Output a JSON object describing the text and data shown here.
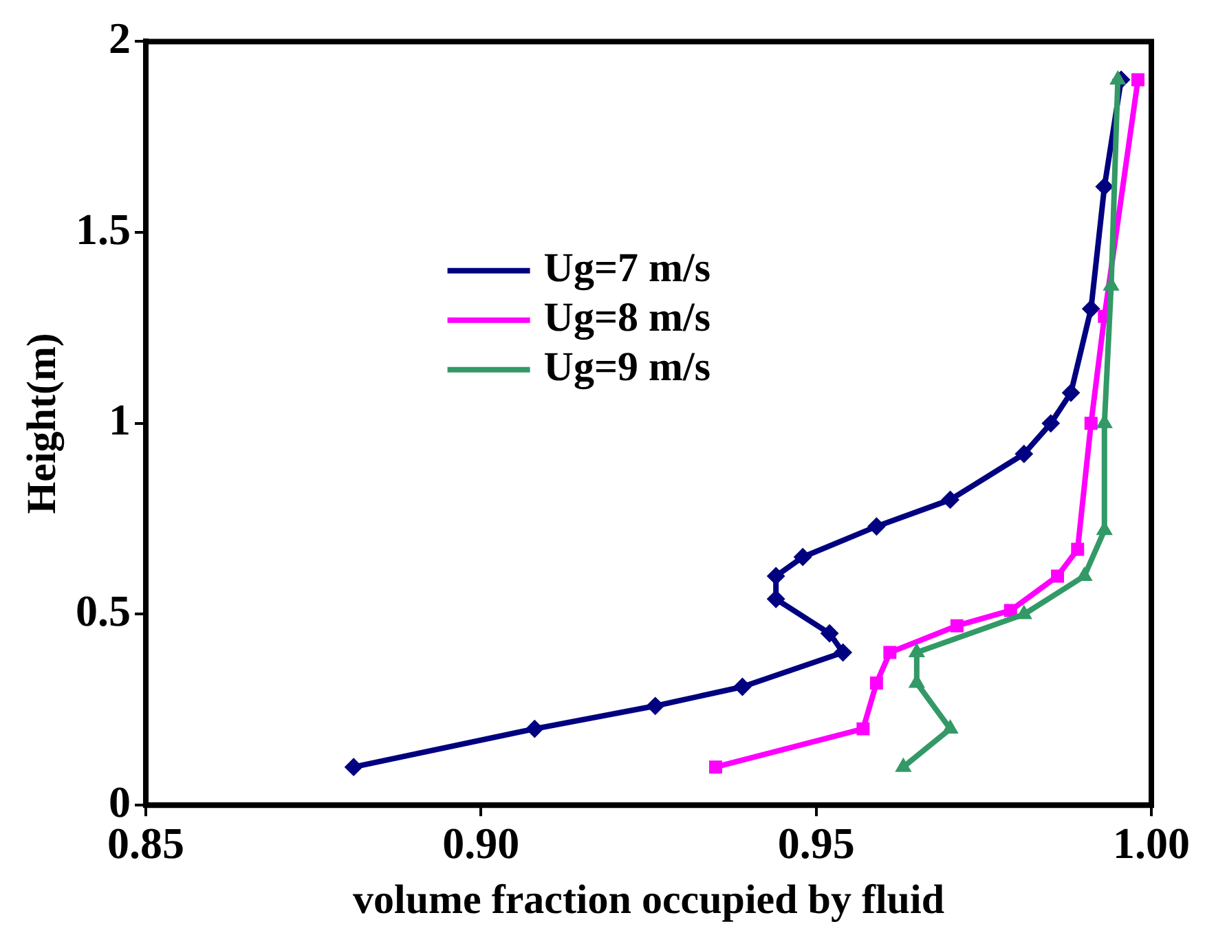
{
  "chart_data": {
    "type": "line",
    "xlabel": "volume fraction occupied by fluid",
    "ylabel": "Height(m)",
    "xlim": [
      0.85,
      1.0
    ],
    "xticks": [
      0.85,
      {
        "value": 0.9,
        "label": "0.90"
      },
      0.95,
      {
        "value": 1.0,
        "label": "1.00"
      }
    ],
    "ylim": [
      0,
      2
    ],
    "yticks": [
      0,
      0.5,
      1,
      1.5,
      2
    ],
    "grid": false,
    "legend": "top",
    "line_style": "solid",
    "series": [
      {
        "name": "Ug=7 m/s",
        "color": "#000080",
        "marker": "diamond",
        "x": [
          0.881,
          0.908,
          0.926,
          0.939,
          0.954,
          0.952,
          0.944,
          0.944,
          0.948,
          0.959,
          0.97,
          0.981,
          0.985,
          0.988,
          0.991,
          0.993,
          0.9955
        ],
        "values": [
          0.1,
          0.2,
          0.26,
          0.31,
          0.4,
          0.45,
          0.54,
          0.6,
          0.65,
          0.73,
          0.8,
          0.92,
          1.0,
          1.08,
          1.3,
          1.62,
          1.9
        ]
      },
      {
        "name": "Ug=8 m/s",
        "color": "#ff00ff",
        "marker": "square",
        "x": [
          0.935,
          0.957,
          0.959,
          0.961,
          0.971,
          0.979,
          0.986,
          0.989,
          0.991,
          0.993,
          0.998
        ],
        "values": [
          0.1,
          0.2,
          0.32,
          0.4,
          0.47,
          0.51,
          0.6,
          0.67,
          1.0,
          1.28,
          1.9
        ]
      },
      {
        "name": "Ug=9 m/s",
        "color": "#339966",
        "marker": "triangle",
        "x": [
          0.963,
          0.97,
          0.965,
          0.965,
          0.981,
          0.99,
          0.993,
          0.993,
          0.994,
          0.995
        ],
        "values": [
          0.1,
          0.2,
          0.32,
          0.4,
          0.5,
          0.6,
          0.72,
          1.0,
          1.36,
          1.9
        ]
      }
    ]
  }
}
